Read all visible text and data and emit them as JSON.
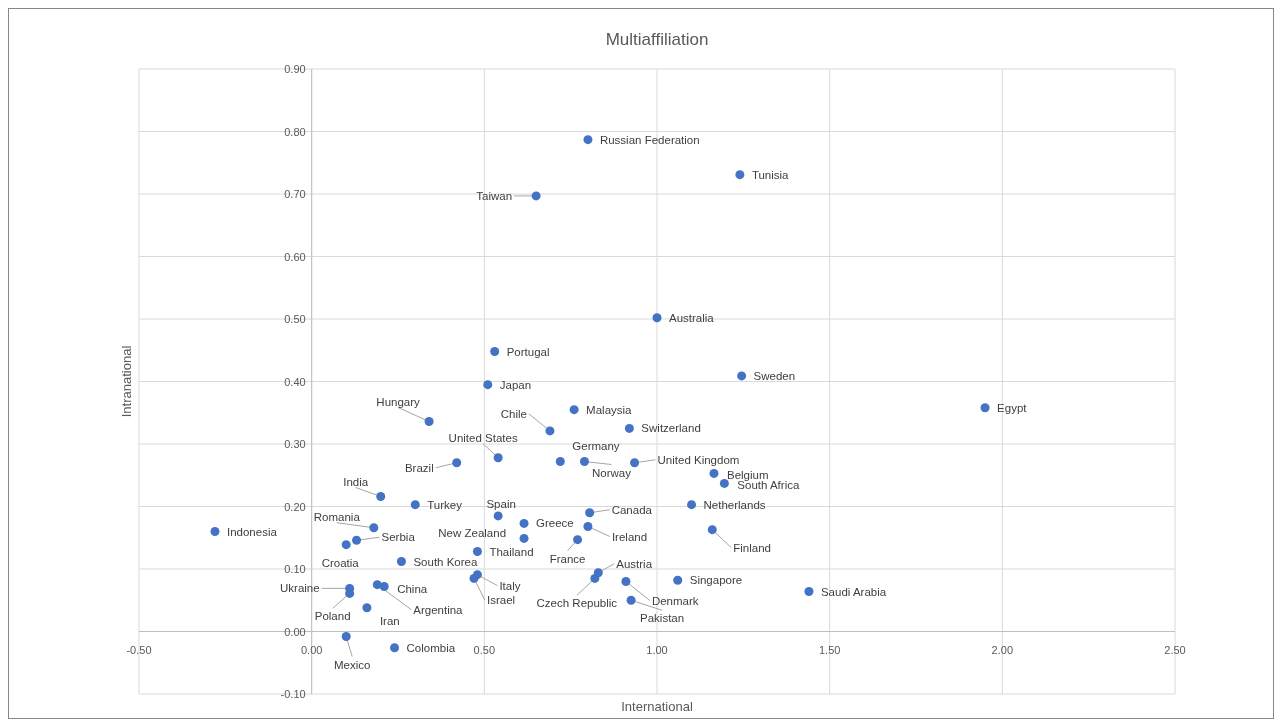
{
  "chart_data": {
    "type": "scatter",
    "title": "Multiaffiliation",
    "xlabel": "International",
    "ylabel": "Intranational",
    "xlim": [
      -0.5,
      2.5
    ],
    "ylim": [
      -0.1,
      0.9
    ],
    "xticks": [
      {
        "value": -0.5,
        "label": "-0.50"
      },
      {
        "value": 0,
        "label": "0.00"
      },
      {
        "value": 0.5,
        "label": "0.50"
      },
      {
        "value": 1,
        "label": "1.00"
      },
      {
        "value": 1.5,
        "label": "1.50"
      },
      {
        "value": 2,
        "label": "2.00"
      },
      {
        "value": 2.5,
        "label": "2.50"
      }
    ],
    "yticks": [
      {
        "value": -0.1,
        "label": "-0.10"
      },
      {
        "value": 0,
        "label": "0.00"
      },
      {
        "value": 0.1,
        "label": "0.10"
      },
      {
        "value": 0.2,
        "label": "0.20"
      },
      {
        "value": 0.3,
        "label": "0.30"
      },
      {
        "value": 0.4,
        "label": "0.40"
      },
      {
        "value": 0.5,
        "label": "0.50"
      },
      {
        "value": 0.6,
        "label": "0.60"
      },
      {
        "value": 0.7,
        "label": "0.70"
      },
      {
        "value": 0.8,
        "label": "0.80"
      },
      {
        "value": 0.9,
        "label": "0.90"
      }
    ],
    "grid": true,
    "marker": "circle",
    "series": [
      {
        "color": "#4472c4",
        "x": [
          -0.28,
          0.34,
          0.42,
          0.54,
          0.2,
          0.3,
          0.54,
          0.18,
          0.13,
          0.1,
          0.26,
          0.48,
          0.48,
          0.47,
          0.11,
          0.11,
          0.21,
          0.19,
          0.16,
          0.1,
          0.24,
          0.51,
          0.53,
          0.65,
          0.8,
          1.24,
          1.0,
          1.245,
          1.95,
          0.69,
          0.76,
          0.92,
          0.72,
          0.79,
          0.935,
          1.165,
          1.195,
          1.1,
          0.805,
          0.615,
          0.615,
          0.8,
          0.77,
          1.16,
          0.83,
          0.82,
          0.91,
          0.925,
          1.06,
          1.44
        ],
        "values": [
          0.16,
          0.336,
          0.27,
          0.278,
          0.216,
          0.203,
          0.185,
          0.166,
          0.146,
          0.139,
          0.112,
          0.128,
          0.091,
          0.085,
          0.069,
          0.061,
          0.072,
          0.075,
          0.038,
          -0.008,
          -0.026,
          0.395,
          0.448,
          0.697,
          0.787,
          0.731,
          0.502,
          0.409,
          0.358,
          0.321,
          0.355,
          0.325,
          0.272,
          0.272,
          0.27,
          0.253,
          0.237,
          0.203,
          0.19,
          0.173,
          0.149,
          0.168,
          0.147,
          0.163,
          0.094,
          0.085,
          0.08,
          0.05,
          0.082,
          0.064
        ]
      }
    ],
    "annotations": [
      {
        "text": "Indonesia",
        "x": -0.28,
        "y": 0.16
      },
      {
        "text": "Hungary",
        "x": 0.34,
        "y": 0.336
      },
      {
        "text": "Brazil",
        "x": 0.42,
        "y": 0.27
      },
      {
        "text": "United States",
        "x": 0.54,
        "y": 0.278
      },
      {
        "text": "India",
        "x": 0.2,
        "y": 0.216
      },
      {
        "text": "Turkey",
        "x": 0.3,
        "y": 0.203
      },
      {
        "text": "Spain",
        "x": 0.54,
        "y": 0.185
      },
      {
        "text": "Romania",
        "x": 0.18,
        "y": 0.166
      },
      {
        "text": "Serbia",
        "x": 0.13,
        "y": 0.146
      },
      {
        "text": "Croatia",
        "x": 0.1,
        "y": 0.139
      },
      {
        "text": "South Korea",
        "x": 0.26,
        "y": 0.112
      },
      {
        "text": "Thailand",
        "x": 0.48,
        "y": 0.128
      },
      {
        "text": "Italy",
        "x": 0.48,
        "y": 0.091
      },
      {
        "text": "Israel",
        "x": 0.47,
        "y": 0.085
      },
      {
        "text": "Ukraine",
        "x": 0.11,
        "y": 0.069
      },
      {
        "text": "Poland",
        "x": 0.11,
        "y": 0.061
      },
      {
        "text": "China",
        "x": 0.21,
        "y": 0.072
      },
      {
        "text": "Argentina",
        "x": 0.19,
        "y": 0.075
      },
      {
        "text": "Iran",
        "x": 0.16,
        "y": 0.038
      },
      {
        "text": "Mexico",
        "x": 0.1,
        "y": -0.008
      },
      {
        "text": "Colombia",
        "x": 0.24,
        "y": -0.026
      },
      {
        "text": "Japan",
        "x": 0.51,
        "y": 0.395
      },
      {
        "text": "Portugal",
        "x": 0.53,
        "y": 0.448
      },
      {
        "text": "Taiwan",
        "x": 0.65,
        "y": 0.697
      },
      {
        "text": "Russian Federation",
        "x": 0.8,
        "y": 0.787
      },
      {
        "text": "Tunisia",
        "x": 1.24,
        "y": 0.731
      },
      {
        "text": "Australia",
        "x": 1.0,
        "y": 0.502
      },
      {
        "text": "Sweden",
        "x": 1.245,
        "y": 0.409
      },
      {
        "text": "Egypt",
        "x": 1.95,
        "y": 0.358
      },
      {
        "text": "Chile",
        "x": 0.69,
        "y": 0.321
      },
      {
        "text": "Malaysia",
        "x": 0.76,
        "y": 0.355
      },
      {
        "text": "Switzerland",
        "x": 0.92,
        "y": 0.325
      },
      {
        "text": "Germany",
        "x": 0.72,
        "y": 0.272
      },
      {
        "text": "Norway",
        "x": 0.79,
        "y": 0.272
      },
      {
        "text": "United Kingdom",
        "x": 0.935,
        "y": 0.27
      },
      {
        "text": "Belgium",
        "x": 1.165,
        "y": 0.253
      },
      {
        "text": "South Africa",
        "x": 1.195,
        "y": 0.237
      },
      {
        "text": "Netherlands",
        "x": 1.1,
        "y": 0.203
      },
      {
        "text": "Canada",
        "x": 0.805,
        "y": 0.19
      },
      {
        "text": "Greece",
        "x": 0.615,
        "y": 0.173
      },
      {
        "text": "New Zealand",
        "x": 0.615,
        "y": 0.149
      },
      {
        "text": "Ireland",
        "x": 0.8,
        "y": 0.168
      },
      {
        "text": "France",
        "x": 0.77,
        "y": 0.147
      },
      {
        "text": "Finland",
        "x": 1.16,
        "y": 0.163
      },
      {
        "text": "Austria",
        "x": 0.83,
        "y": 0.094
      },
      {
        "text": "Czech Republic",
        "x": 0.82,
        "y": 0.085
      },
      {
        "text": "Denmark",
        "x": 0.91,
        "y": 0.08
      },
      {
        "text": "Pakistan",
        "x": 0.925,
        "y": 0.05
      },
      {
        "text": "Singapore",
        "x": 1.06,
        "y": 0.082
      },
      {
        "text": "Saudi Arabia",
        "x": 1.44,
        "y": 0.064
      }
    ]
  }
}
